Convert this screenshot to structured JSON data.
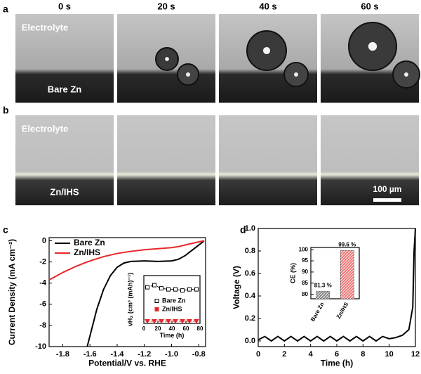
{
  "photos": {
    "times": [
      "0 s",
      "20 s",
      "40 s",
      "60 s"
    ],
    "row_a": {
      "label": "a",
      "top": "Electrolyte",
      "bottom": "Bare Zn"
    },
    "row_b": {
      "label": "b",
      "top": "Electrolyte",
      "bottom": "Zn/IHS",
      "scale_bar": "100 µm"
    }
  },
  "chart_data": [
    {
      "type": "line",
      "panel_label": "c",
      "xlabel": "Potential/V vs. RHE",
      "ylabel": "Current Density (mA cm⁻²)",
      "x": [
        -1.9,
        -1.8,
        -1.7,
        -1.62,
        -1.55,
        -1.5,
        -1.45,
        -1.4,
        -1.35,
        -1.3,
        -1.2,
        -1.1,
        -1.0,
        -0.95,
        -0.9,
        -0.85,
        -0.8,
        -0.76
      ],
      "series": [
        {
          "name": "Bare Zn",
          "color": "#000000",
          "values": [
            null,
            null,
            null,
            -10,
            -6.5,
            -4.6,
            -3.3,
            -2.5,
            -2.1,
            -1.95,
            -1.9,
            -1.95,
            -1.9,
            -1.75,
            -1.4,
            -0.9,
            -0.4,
            0
          ]
        },
        {
          "name": "Zn/IHS",
          "color": "#e8262a",
          "values": [
            -3.7,
            -3.0,
            -2.4,
            -2.0,
            -1.7,
            -1.5,
            -1.35,
            -1.2,
            -1.1,
            -1.0,
            -0.85,
            -0.75,
            -0.65,
            -0.55,
            -0.4,
            -0.25,
            -0.1,
            0
          ]
        }
      ],
      "xlim": [
        -1.9,
        -0.75
      ],
      "ylim": [
        -10,
        0.3
      ],
      "xticks": [
        -1.8,
        -1.6,
        -1.4,
        -1.2,
        {
          "value": -1,
          "label": "-1.0"
        },
        -0.8
      ],
      "yticks": [
        0,
        -2,
        -4,
        -6,
        -8,
        -10
      ],
      "legend": "top-left"
    },
    {
      "type": "scatter",
      "xlabel": "Time (h)",
      "ylabel": "vH₂ (cm³ (mAh)⁻¹)",
      "x": [
        5,
        15,
        25,
        35,
        45,
        55,
        65,
        75
      ],
      "series": [
        {
          "name": "Bare Zn",
          "color": "#000000",
          "marker": "square",
          "values": [
            0.034,
            0.036,
            0.033,
            0.032,
            0.032,
            0.031,
            0.032,
            0.032
          ]
        },
        {
          "name": "Zn/IHS",
          "color": "#e8262a",
          "marker": "triangle",
          "values": [
            0.002,
            0.002,
            0.002,
            0.002,
            0.002,
            0.002,
            0.002,
            0.002
          ]
        }
      ],
      "xlim": [
        0,
        80
      ],
      "ylim": [
        0,
        0.045
      ],
      "xticks": [
        0,
        20,
        40,
        60,
        80
      ],
      "legend": "center-right"
    },
    {
      "type": "line",
      "panel_label": "d",
      "xlabel": "Time (h)",
      "ylabel": "Voltage (V)",
      "x": [
        0,
        0.5,
        1,
        1.5,
        2,
        2.5,
        3,
        3.5,
        4,
        4.5,
        5,
        5.5,
        6,
        6.5,
        7,
        7.5,
        8,
        8.5,
        9,
        9.5,
        10,
        10.5,
        11,
        11.5,
        11.8,
        11.9,
        12
      ],
      "series": [
        {
          "name": "Voltage",
          "color": "#000000",
          "values": [
            0.01,
            0.04,
            0.0,
            0.04,
            0.0,
            0.04,
            0.0,
            0.04,
            0.0,
            0.04,
            0.0,
            0.04,
            0.0,
            0.04,
            0.0,
            0.04,
            0.0,
            0.04,
            0.0,
            0.04,
            0.02,
            0.03,
            0.05,
            0.1,
            0.3,
            0.8,
            1.0
          ]
        }
      ],
      "xlim": [
        0,
        12
      ],
      "ylim": [
        -0.05,
        1.0
      ],
      "xticks": [
        0,
        2,
        4,
        6,
        8,
        10,
        12
      ],
      "yticks": [
        {
          "value": 0,
          "label": "0.0"
        },
        0.2,
        0.4,
        0.6,
        0.8,
        {
          "value": 1,
          "label": "1.0"
        }
      ]
    },
    {
      "type": "bar",
      "ylabel": "CE (%)",
      "categories": [
        "Bare Zn",
        "Zn/IHS"
      ],
      "series": [
        {
          "name": "CE",
          "colors": [
            "#8a8a8a",
            "#f07a7a"
          ],
          "values": [
            81.3,
            99.6
          ],
          "value_labels": [
            "81.3 %",
            "99.6 %"
          ]
        }
      ],
      "ylim": [
        78,
        101
      ],
      "yticks": [
        80,
        85,
        90,
        95,
        100
      ]
    }
  ]
}
